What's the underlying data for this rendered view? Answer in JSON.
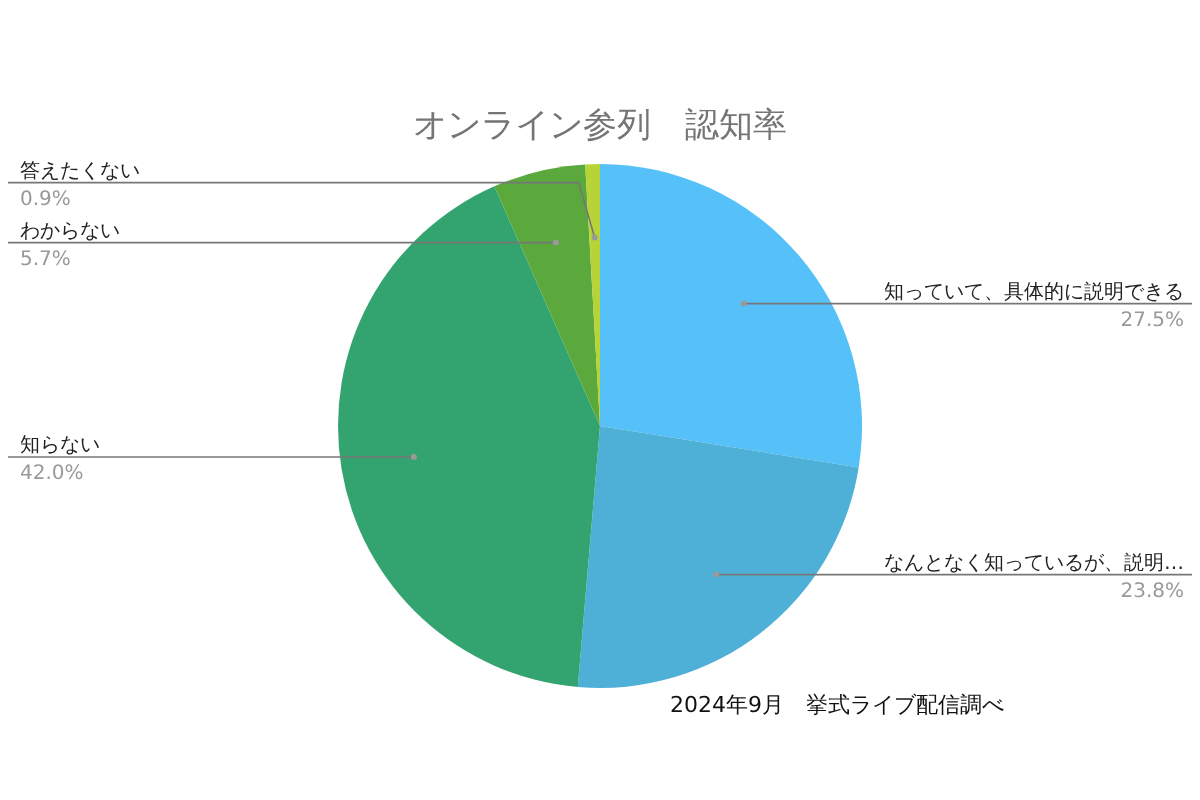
{
  "chart_data": {
    "type": "pie",
    "title": "オンライン参列　認知率",
    "categories": [
      "知っていて、具体的に説明できる",
      "なんとなく知っているが、説明…",
      "知らない",
      "わからない",
      "答えたくない"
    ],
    "values": [
      27.5,
      23.8,
      42.0,
      5.7,
      0.9
    ],
    "colors": [
      "#56c1f8",
      "#4eb0d7",
      "#33a46f",
      "#5ba83d",
      "#b6d435"
    ],
    "value_labels": [
      "27.5%",
      "23.8%",
      "42.0%",
      "5.7%",
      "0.9%"
    ],
    "annotations": [
      "2024年9月　挙式ライブ配信調べ"
    ]
  }
}
